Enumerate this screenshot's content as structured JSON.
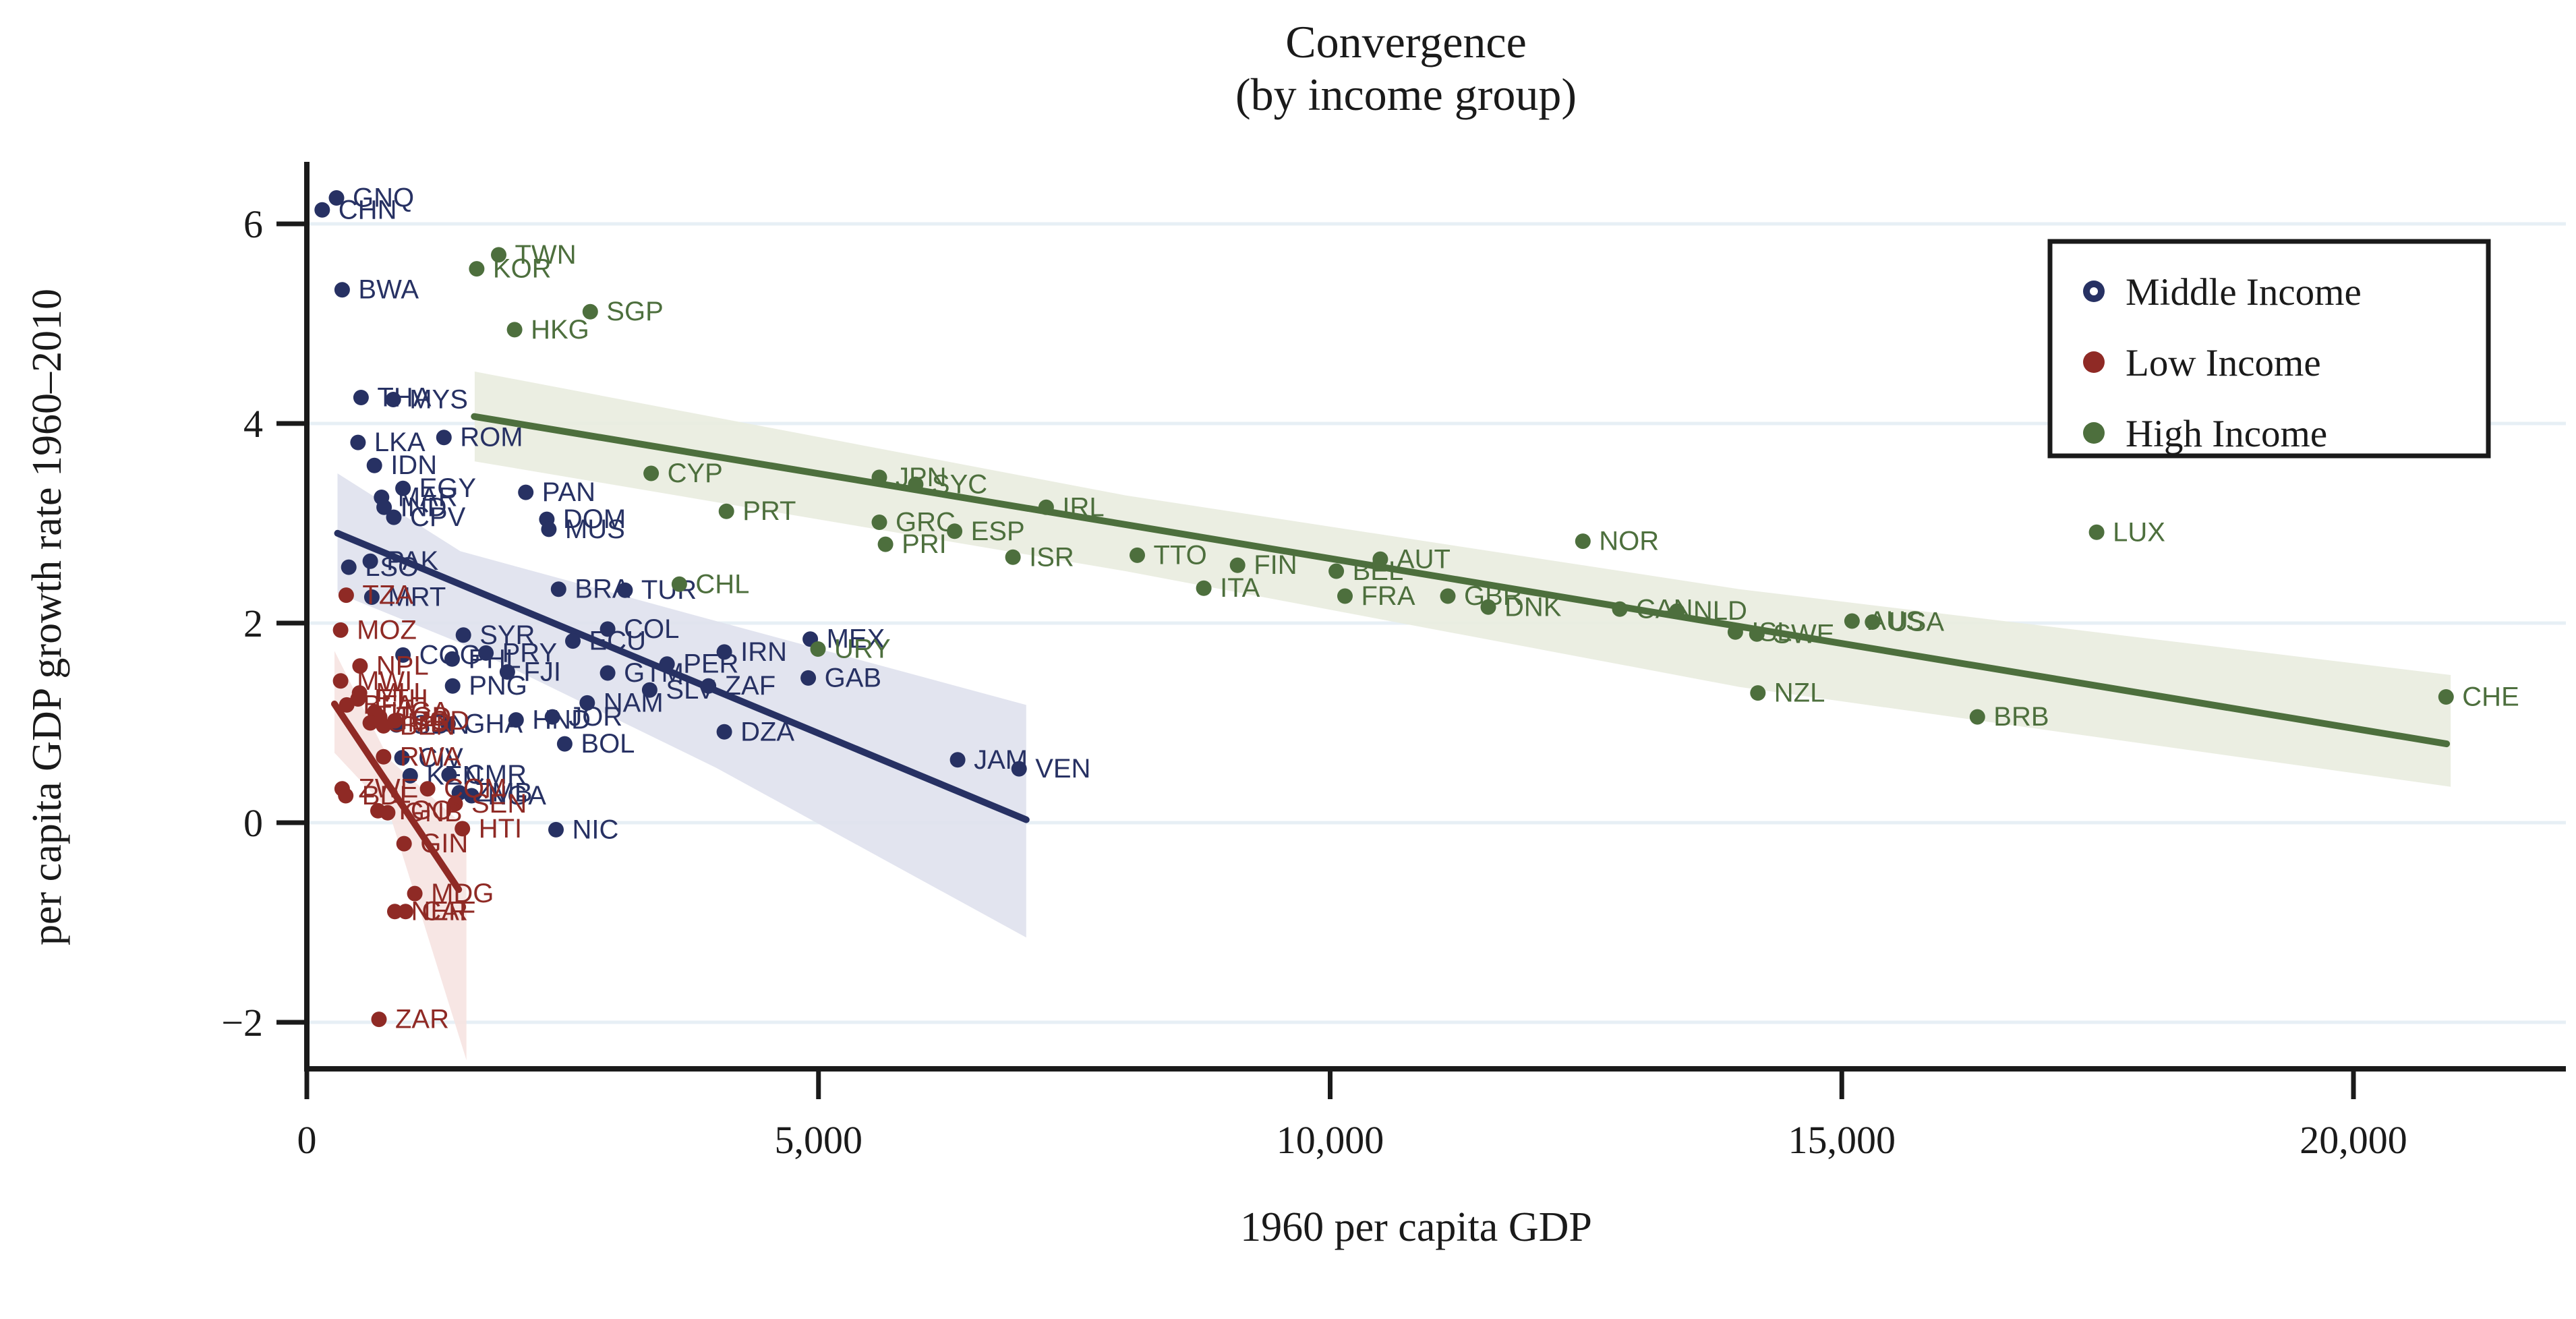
{
  "title": {
    "line1": "Convergence",
    "line2": "(by income group)"
  },
  "axes": {
    "x": {
      "label": "1960 per capita GDP",
      "ticks": [
        {
          "value": 0,
          "label": "0"
        },
        {
          "value": 5000,
          "label": "5,000"
        },
        {
          "value": 10000,
          "label": "10,000"
        },
        {
          "value": 15000,
          "label": "15,000"
        },
        {
          "value": 20000,
          "label": "20,000"
        }
      ]
    },
    "y": {
      "label": "per capita GDP growth rate 1960–2010",
      "ticks": [
        {
          "value": 6,
          "label": "6"
        },
        {
          "value": 4,
          "label": "4"
        },
        {
          "value": 2,
          "label": "2"
        },
        {
          "value": 0,
          "label": "0"
        },
        {
          "value": -2,
          "label": "−2"
        }
      ]
    }
  },
  "legend": {
    "items": [
      {
        "label": "Middle Income",
        "color": "#273163",
        "marker": "ring"
      },
      {
        "label": "Low Income",
        "color": "#8f2a25",
        "marker": "solid"
      },
      {
        "label": "High Income",
        "color": "#4d6f3d",
        "marker": "solid"
      }
    ]
  },
  "colors": {
    "middle": "#273163",
    "low": "#8f2a25",
    "high": "#4d6f3d",
    "middle_band": "#dfe1ed",
    "low_band": "#f6e3e1",
    "high_band": "#e9ecdf",
    "gridline": "#e7eff5",
    "axis": "#1a1a1a",
    "background": "#ffffff"
  },
  "chart_data": {
    "type": "scatter",
    "xlabel": "1960 per capita GDP",
    "ylabel": "per capita GDP growth rate 1960–2010",
    "xlim": [
      0,
      22000
    ],
    "ylim": [
      -2.6,
      6.6
    ],
    "grid": "horizontal",
    "legend_position": "upper right",
    "series": [
      {
        "name": "Middle Income",
        "color": "#273163",
        "points": [
          {
            "code": "CHN",
            "x": 150,
            "y": 6.14
          },
          {
            "code": "GNQ",
            "x": 290,
            "y": 6.26
          },
          {
            "code": "BWA",
            "x": 345,
            "y": 5.34
          },
          {
            "code": "THA",
            "x": 530,
            "y": 4.26
          },
          {
            "code": "MYS",
            "x": 845,
            "y": 4.24
          },
          {
            "code": "ROM",
            "x": 1340,
            "y": 3.86
          },
          {
            "code": "LKA",
            "x": 500,
            "y": 3.81
          },
          {
            "code": "IDN",
            "x": 660,
            "y": 3.58
          },
          {
            "code": "EGY",
            "x": 940,
            "y": 3.35
          },
          {
            "code": "MAR",
            "x": 730,
            "y": 3.26
          },
          {
            "code": "IND",
            "x": 755,
            "y": 3.16
          },
          {
            "code": "CPV",
            "x": 850,
            "y": 3.06
          },
          {
            "code": "PAK",
            "x": 620,
            "y": 2.62
          },
          {
            "code": "LSO",
            "x": 410,
            "y": 2.56
          },
          {
            "code": "MRT",
            "x": 635,
            "y": 2.26
          },
          {
            "code": "PAN",
            "x": 2140,
            "y": 3.31
          },
          {
            "code": "DOM",
            "x": 2345,
            "y": 3.04
          },
          {
            "code": "MUS",
            "x": 2365,
            "y": 2.94
          },
          {
            "code": "BRA",
            "x": 2460,
            "y": 2.34
          },
          {
            "code": "TUR",
            "x": 3110,
            "y": 2.33
          },
          {
            "code": "SYR",
            "x": 1530,
            "y": 1.88
          },
          {
            "code": "COG",
            "x": 940,
            "y": 1.68
          },
          {
            "code": "PHL",
            "x": 1420,
            "y": 1.64
          },
          {
            "code": "PRY",
            "x": 1750,
            "y": 1.7
          },
          {
            "code": "FJI",
            "x": 1960,
            "y": 1.51
          },
          {
            "code": "PNG",
            "x": 1425,
            "y": 1.37
          },
          {
            "code": "GHA",
            "x": 1380,
            "y": 0.99
          },
          {
            "code": "SDN",
            "x": 875,
            "y": 0.98
          },
          {
            "code": "HND",
            "x": 2045,
            "y": 1.03
          },
          {
            "code": "JOR",
            "x": 2400,
            "y": 1.06
          },
          {
            "code": "NAM",
            "x": 2740,
            "y": 1.2
          },
          {
            "code": "BOL",
            "x": 2520,
            "y": 0.79
          },
          {
            "code": "ECU",
            "x": 2600,
            "y": 1.82
          },
          {
            "code": "COL",
            "x": 2940,
            "y": 1.94
          },
          {
            "code": "GTM",
            "x": 2940,
            "y": 1.5
          },
          {
            "code": "PER",
            "x": 3520,
            "y": 1.59
          },
          {
            "code": "SLV",
            "x": 3350,
            "y": 1.33
          },
          {
            "code": "ZAF",
            "x": 3925,
            "y": 1.37
          },
          {
            "code": "IRN",
            "x": 4080,
            "y": 1.71
          },
          {
            "code": "MEX",
            "x": 4920,
            "y": 1.84
          },
          {
            "code": "GAB",
            "x": 4900,
            "y": 1.45
          },
          {
            "code": "DZA",
            "x": 4080,
            "y": 0.91
          },
          {
            "code": "JAM",
            "x": 6360,
            "y": 0.63
          },
          {
            "code": "VEN",
            "x": 6960,
            "y": 0.54
          },
          {
            "code": "NIC",
            "x": 2435,
            "y": -0.07
          },
          {
            "code": "KEN",
            "x": 1010,
            "y": 0.47
          },
          {
            "code": "CMR",
            "x": 1390,
            "y": 0.48
          },
          {
            "code": "CIV",
            "x": 930,
            "y": 0.65
          },
          {
            "code": "ZMB",
            "x": 1490,
            "y": 0.3
          },
          {
            "code": "NGA",
            "x": 1610,
            "y": 0.27
          }
        ]
      },
      {
        "name": "Low Income",
        "color": "#8f2a25",
        "points": [
          {
            "code": "TZA",
            "x": 385,
            "y": 2.28
          },
          {
            "code": "MOZ",
            "x": 330,
            "y": 1.93
          },
          {
            "code": "NPL",
            "x": 520,
            "y": 1.57
          },
          {
            "code": "MWI",
            "x": 330,
            "y": 1.42
          },
          {
            "code": "MLI",
            "x": 515,
            "y": 1.3
          },
          {
            "code": "ETH",
            "x": 500,
            "y": 1.24
          },
          {
            "code": "BFA",
            "x": 390,
            "y": 1.18
          },
          {
            "code": "UGA",
            "x": 665,
            "y": 1.11
          },
          {
            "code": "TCD",
            "x": 712,
            "y": 1.06
          },
          {
            "code": "GMB",
            "x": 620,
            "y": 1.0
          },
          {
            "code": "BEN",
            "x": 750,
            "y": 0.97
          },
          {
            "code": "BGD",
            "x": 860,
            "y": 1.02
          },
          {
            "code": "RWA",
            "x": 750,
            "y": 0.66
          },
          {
            "code": "ZWE",
            "x": 345,
            "y": 0.34
          },
          {
            "code": "BDI",
            "x": 380,
            "y": 0.27
          },
          {
            "code": "COM",
            "x": 1180,
            "y": 0.34
          },
          {
            "code": "SEN",
            "x": 1450,
            "y": 0.19
          },
          {
            "code": "TGO",
            "x": 695,
            "y": 0.12
          },
          {
            "code": "GNB",
            "x": 790,
            "y": 0.1
          },
          {
            "code": "GIN",
            "x": 950,
            "y": -0.21
          },
          {
            "code": "HTI",
            "x": 1520,
            "y": -0.06
          },
          {
            "code": "MDG",
            "x": 1055,
            "y": -0.71
          },
          {
            "code": "NER",
            "x": 860,
            "y": -0.89
          },
          {
            "code": "CAF",
            "x": 965,
            "y": -0.89
          },
          {
            "code": "ZAR",
            "x": 705,
            "y": -1.97
          }
        ]
      },
      {
        "name": "High Income",
        "color": "#4d6f3d",
        "points": [
          {
            "code": "TWN",
            "x": 1875,
            "y": 5.69
          },
          {
            "code": "KOR",
            "x": 1660,
            "y": 5.55
          },
          {
            "code": "SGP",
            "x": 2770,
            "y": 5.12
          },
          {
            "code": "HKG",
            "x": 2030,
            "y": 4.94
          },
          {
            "code": "CYP",
            "x": 3365,
            "y": 3.5
          },
          {
            "code": "PRT",
            "x": 4100,
            "y": 3.12
          },
          {
            "code": "CHL",
            "x": 3640,
            "y": 2.39
          },
          {
            "code": "URY",
            "x": 4995,
            "y": 1.74
          },
          {
            "code": "JPN",
            "x": 5595,
            "y": 3.46
          },
          {
            "code": "SYC",
            "x": 5950,
            "y": 3.39
          },
          {
            "code": "GRC",
            "x": 5595,
            "y": 3.01
          },
          {
            "code": "ESP",
            "x": 6330,
            "y": 2.92
          },
          {
            "code": "PRI",
            "x": 5655,
            "y": 2.79
          },
          {
            "code": "ISR",
            "x": 6900,
            "y": 2.66
          },
          {
            "code": "IRL",
            "x": 7225,
            "y": 3.16
          },
          {
            "code": "TTO",
            "x": 8115,
            "y": 2.68
          },
          {
            "code": "FIN",
            "x": 9095,
            "y": 2.58
          },
          {
            "code": "ITA",
            "x": 8765,
            "y": 2.35
          },
          {
            "code": "BEL",
            "x": 10060,
            "y": 2.52
          },
          {
            "code": "AUT",
            "x": 10490,
            "y": 2.64
          },
          {
            "code": "FRA",
            "x": 10145,
            "y": 2.27
          },
          {
            "code": "GBR",
            "x": 11150,
            "y": 2.27
          },
          {
            "code": "DNK",
            "x": 11545,
            "y": 2.16
          },
          {
            "code": "NOR",
            "x": 12470,
            "y": 2.82
          },
          {
            "code": "CAN",
            "x": 12830,
            "y": 2.14
          },
          {
            "code": "NLD",
            "x": 13390,
            "y": 2.12
          },
          {
            "code": "ISL",
            "x": 13960,
            "y": 1.91
          },
          {
            "code": "SWE",
            "x": 14170,
            "y": 1.89
          },
          {
            "code": "AUS",
            "x": 15100,
            "y": 2.02
          },
          {
            "code": "USA",
            "x": 15300,
            "y": 2.01
          },
          {
            "code": "NZL",
            "x": 14180,
            "y": 1.3
          },
          {
            "code": "LUX",
            "x": 17490,
            "y": 2.91
          },
          {
            "code": "BRB",
            "x": 16325,
            "y": 1.06
          },
          {
            "code": "CHE",
            "x": 20905,
            "y": 1.26
          }
        ]
      }
    ],
    "fit_lines": [
      {
        "series": "Middle Income",
        "color": "#273163",
        "x1": 300,
        "y1": 2.9,
        "x2": 7030,
        "y2": 0.03
      },
      {
        "series": "Low Income",
        "color": "#8f2a25",
        "x1": 270,
        "y1": 1.19,
        "x2": 1484,
        "y2": -0.67
      },
      {
        "series": "High Income",
        "color": "#4d6f3d",
        "x1": 1636,
        "y1": 4.07,
        "x2": 20910,
        "y2": 0.79
      }
    ],
    "ci_bands": [
      {
        "series": "High Income",
        "color": "#e9ecdf",
        "top": [
          [
            1640,
            4.52
          ],
          [
            8000,
            3.28
          ],
          [
            14000,
            2.34
          ],
          [
            20950,
            1.48
          ]
        ],
        "bottom": [
          [
            20950,
            0.36
          ],
          [
            14000,
            1.36
          ],
          [
            8000,
            2.52
          ],
          [
            1640,
            3.62
          ]
        ]
      },
      {
        "series": "Middle Income",
        "color": "#dfe1ed",
        "top": [
          [
            300,
            3.5
          ],
          [
            1500,
            2.72
          ],
          [
            4000,
            2.02
          ],
          [
            7030,
            1.18
          ]
        ],
        "bottom": [
          [
            7030,
            -1.15
          ],
          [
            4000,
            0.55
          ],
          [
            1500,
            1.8
          ],
          [
            300,
            2.3
          ]
        ]
      },
      {
        "series": "Low Income",
        "color": "#f6e3e1",
        "top": [
          [
            270,
            1.72
          ],
          [
            800,
            0.64
          ],
          [
            1560,
            -0.05
          ]
        ],
        "bottom": [
          [
            1560,
            -2.38
          ],
          [
            800,
            0.12
          ],
          [
            270,
            0.7
          ]
        ]
      }
    ]
  }
}
